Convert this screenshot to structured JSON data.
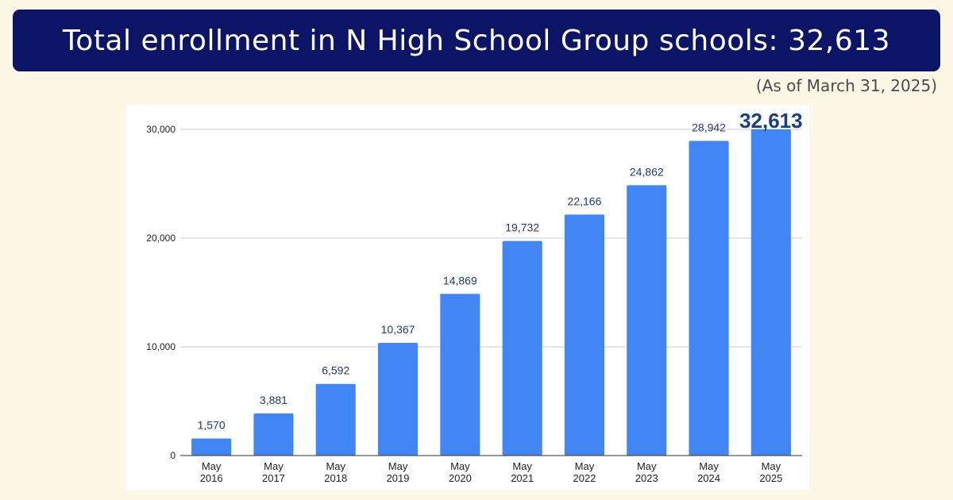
{
  "header": {
    "title": "Total enrollment in N High School Group schools: 32,613",
    "as_of": "(As of March 31, 2025)"
  },
  "colors": {
    "background": "#fdf8e6",
    "banner": "#0c1466",
    "bar": "#4285f4",
    "data_label": "#1c3a78",
    "highlight_label": "#1a3f8a"
  },
  "chart_data": {
    "type": "bar",
    "title": "",
    "xlabel": "",
    "ylabel": "",
    "categories": [
      [
        "May",
        "2016"
      ],
      [
        "May",
        "2017"
      ],
      [
        "May",
        "2018"
      ],
      [
        "May",
        "2019"
      ],
      [
        "May",
        "2020"
      ],
      [
        "May",
        "2021"
      ],
      [
        "May",
        "2022"
      ],
      [
        "May",
        "2023"
      ],
      [
        "May",
        "2024"
      ],
      [
        "May",
        "2025"
      ]
    ],
    "values": [
      1570,
      3881,
      6592,
      10367,
      14869,
      19732,
      22166,
      24862,
      28942,
      32613
    ],
    "value_labels": [
      "1,570",
      "3,881",
      "6,592",
      "10,367",
      "14,869",
      "19,732",
      "22,166",
      "24,862",
      "28,942",
      "32,613"
    ],
    "highlight_index": 9,
    "ylim": [
      0,
      30000
    ],
    "yticks": [
      0,
      10000,
      20000,
      30000
    ],
    "ytick_labels": [
      "0",
      "10,000",
      "20,000",
      "30,000"
    ],
    "grid": true,
    "legend": "none"
  }
}
